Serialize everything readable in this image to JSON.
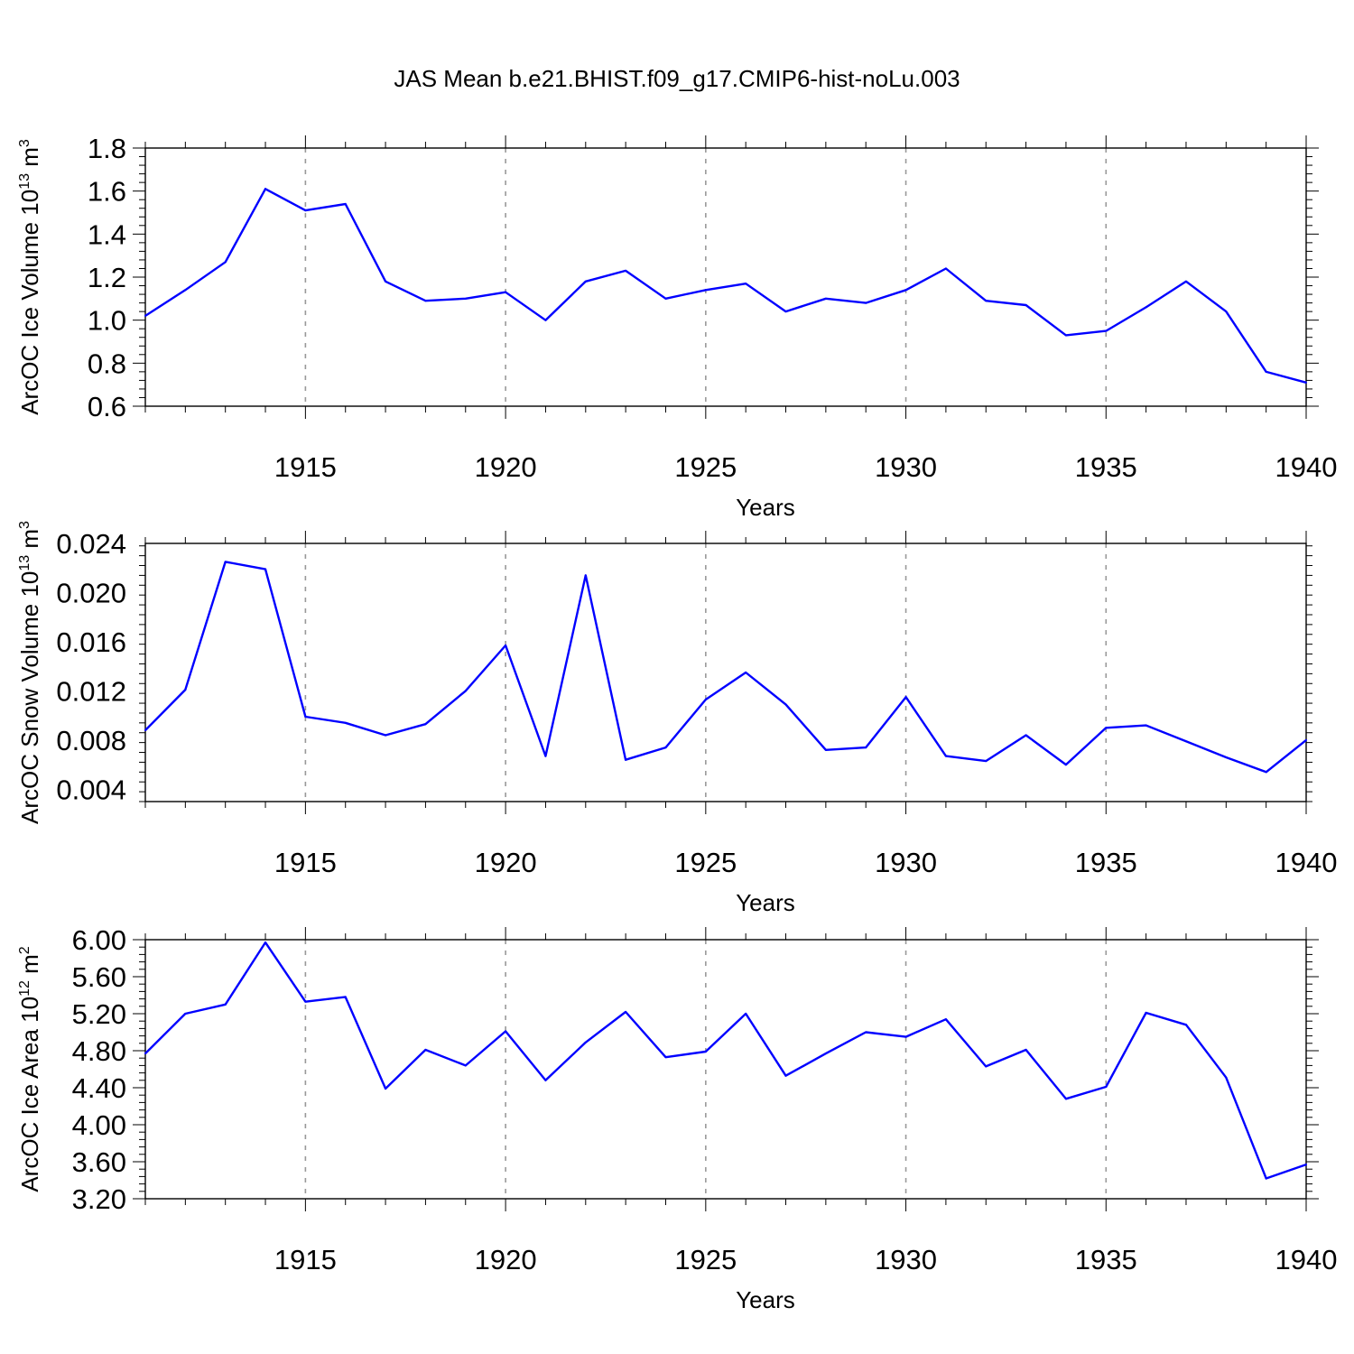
{
  "figure": {
    "title": "JAS Mean b.e21.BHIST.f09_g17.CMIP6-hist-noLu.003"
  },
  "chart_data": [
    {
      "type": "line",
      "xlabel": "Years",
      "ylabel": "ArcOC Ice Volume 10",
      "ylabel_sup": "13",
      "ylabel_unit": " m",
      "ylabel_unit_sup": "3",
      "xlim": [
        1911,
        1940
      ],
      "ylim": [
        0.6,
        1.8
      ],
      "x_ticks": [
        1915,
        1920,
        1925,
        1930,
        1935,
        1940
      ],
      "y_ticks": [
        "0.6",
        "0.8",
        "1.0",
        "1.2",
        "1.4",
        "1.6",
        "1.8"
      ],
      "grid": "vertical dashed at major x ticks",
      "color": "#0000ff",
      "series": [
        {
          "x": [
            1911,
            1912,
            1913,
            1914,
            1915,
            1916,
            1917,
            1918,
            1919,
            1920,
            1921,
            1922,
            1923,
            1924,
            1925,
            1926,
            1927,
            1928,
            1929,
            1930,
            1931,
            1932,
            1933,
            1934,
            1935,
            1936,
            1937,
            1938,
            1939,
            1940
          ],
          "values": [
            1.02,
            1.14,
            1.27,
            1.61,
            1.51,
            1.54,
            1.18,
            1.09,
            1.1,
            1.13,
            1.0,
            1.18,
            1.23,
            1.1,
            1.14,
            1.17,
            1.04,
            1.1,
            1.08,
            1.14,
            1.24,
            1.09,
            1.07,
            0.93,
            0.95,
            1.06,
            1.18,
            1.04,
            0.76,
            0.71
          ]
        }
      ]
    },
    {
      "type": "line",
      "xlabel": "Years",
      "ylabel": "ArcOC Snow Volume 10",
      "ylabel_sup": "13",
      "ylabel_unit": " m",
      "ylabel_unit_sup": "3",
      "xlim": [
        1911,
        1940
      ],
      "ylim": [
        0.003,
        0.024
      ],
      "x_ticks": [
        1915,
        1920,
        1925,
        1930,
        1935,
        1940
      ],
      "y_ticks": [
        "0.004",
        "0.008",
        "0.012",
        "0.016",
        "0.020",
        "0.024"
      ],
      "grid": "vertical dashed at major x ticks",
      "color": "#0000ff",
      "series": [
        {
          "x": [
            1911,
            1912,
            1913,
            1914,
            1915,
            1916,
            1917,
            1918,
            1919,
            1920,
            1921,
            1922,
            1923,
            1924,
            1925,
            1926,
            1927,
            1928,
            1929,
            1930,
            1931,
            1932,
            1933,
            1934,
            1935,
            1936,
            1937,
            1938,
            1939,
            1940
          ],
          "values": [
            0.0088,
            0.0121,
            0.0225,
            0.0219,
            0.0099,
            0.0094,
            0.0084,
            0.0093,
            0.012,
            0.0157,
            0.0067,
            0.0214,
            0.0064,
            0.0074,
            0.0113,
            0.0135,
            0.0109,
            0.0072,
            0.0074,
            0.0115,
            0.0067,
            0.0063,
            0.0084,
            0.006,
            0.009,
            0.0092,
            0.0079,
            0.0066,
            0.0054,
            0.008
          ]
        }
      ]
    },
    {
      "type": "line",
      "xlabel": "Years",
      "ylabel": "ArcOC Ice Area 10",
      "ylabel_sup": "12",
      "ylabel_unit": " m",
      "ylabel_unit_sup": "2",
      "xlim": [
        1911,
        1940
      ],
      "ylim": [
        3.2,
        6.0
      ],
      "x_ticks": [
        1915,
        1920,
        1925,
        1930,
        1935,
        1940
      ],
      "y_ticks": [
        "3.20",
        "3.60",
        "4.00",
        "4.40",
        "4.80",
        "5.20",
        "5.60",
        "6.00"
      ],
      "grid": "vertical dashed at major x ticks",
      "color": "#0000ff",
      "series": [
        {
          "x": [
            1911,
            1912,
            1913,
            1914,
            1915,
            1916,
            1917,
            1918,
            1919,
            1920,
            1921,
            1922,
            1923,
            1924,
            1925,
            1926,
            1927,
            1928,
            1929,
            1930,
            1931,
            1932,
            1933,
            1934,
            1935,
            1936,
            1937,
            1938,
            1939,
            1940
          ],
          "values": [
            4.77,
            5.2,
            5.3,
            5.97,
            5.33,
            5.38,
            4.39,
            4.81,
            4.64,
            5.01,
            4.48,
            4.89,
            5.22,
            4.73,
            4.79,
            5.2,
            4.53,
            4.77,
            5.0,
            4.95,
            5.14,
            4.63,
            4.81,
            4.28,
            4.41,
            5.21,
            5.08,
            4.51,
            3.42,
            3.57
          ]
        }
      ]
    }
  ]
}
